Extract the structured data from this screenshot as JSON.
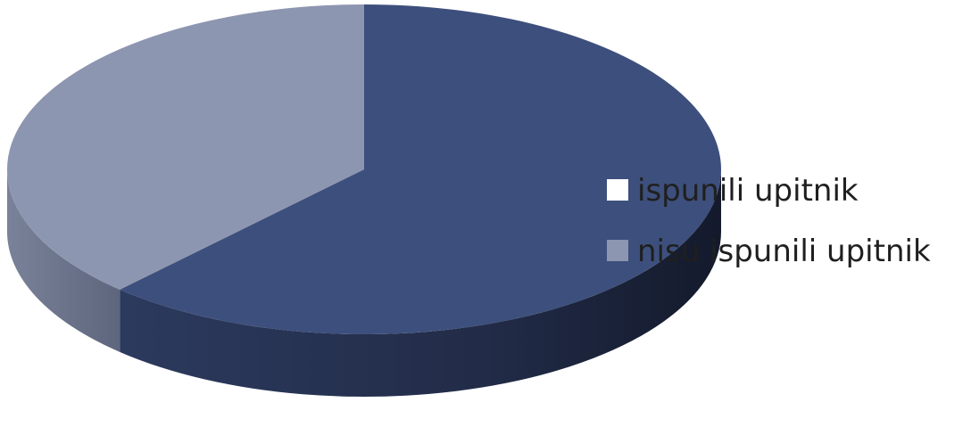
{
  "chart_data": {
    "type": "pie",
    "style": "3d",
    "title": "",
    "slices": [
      {
        "label": "ispunili upitnik",
        "value": 62,
        "color": "#3d4f7c"
      },
      {
        "label": "nisu ispunili upitnik",
        "value": 38,
        "color": "#8d96b0"
      }
    ],
    "legend_position": "right"
  }
}
